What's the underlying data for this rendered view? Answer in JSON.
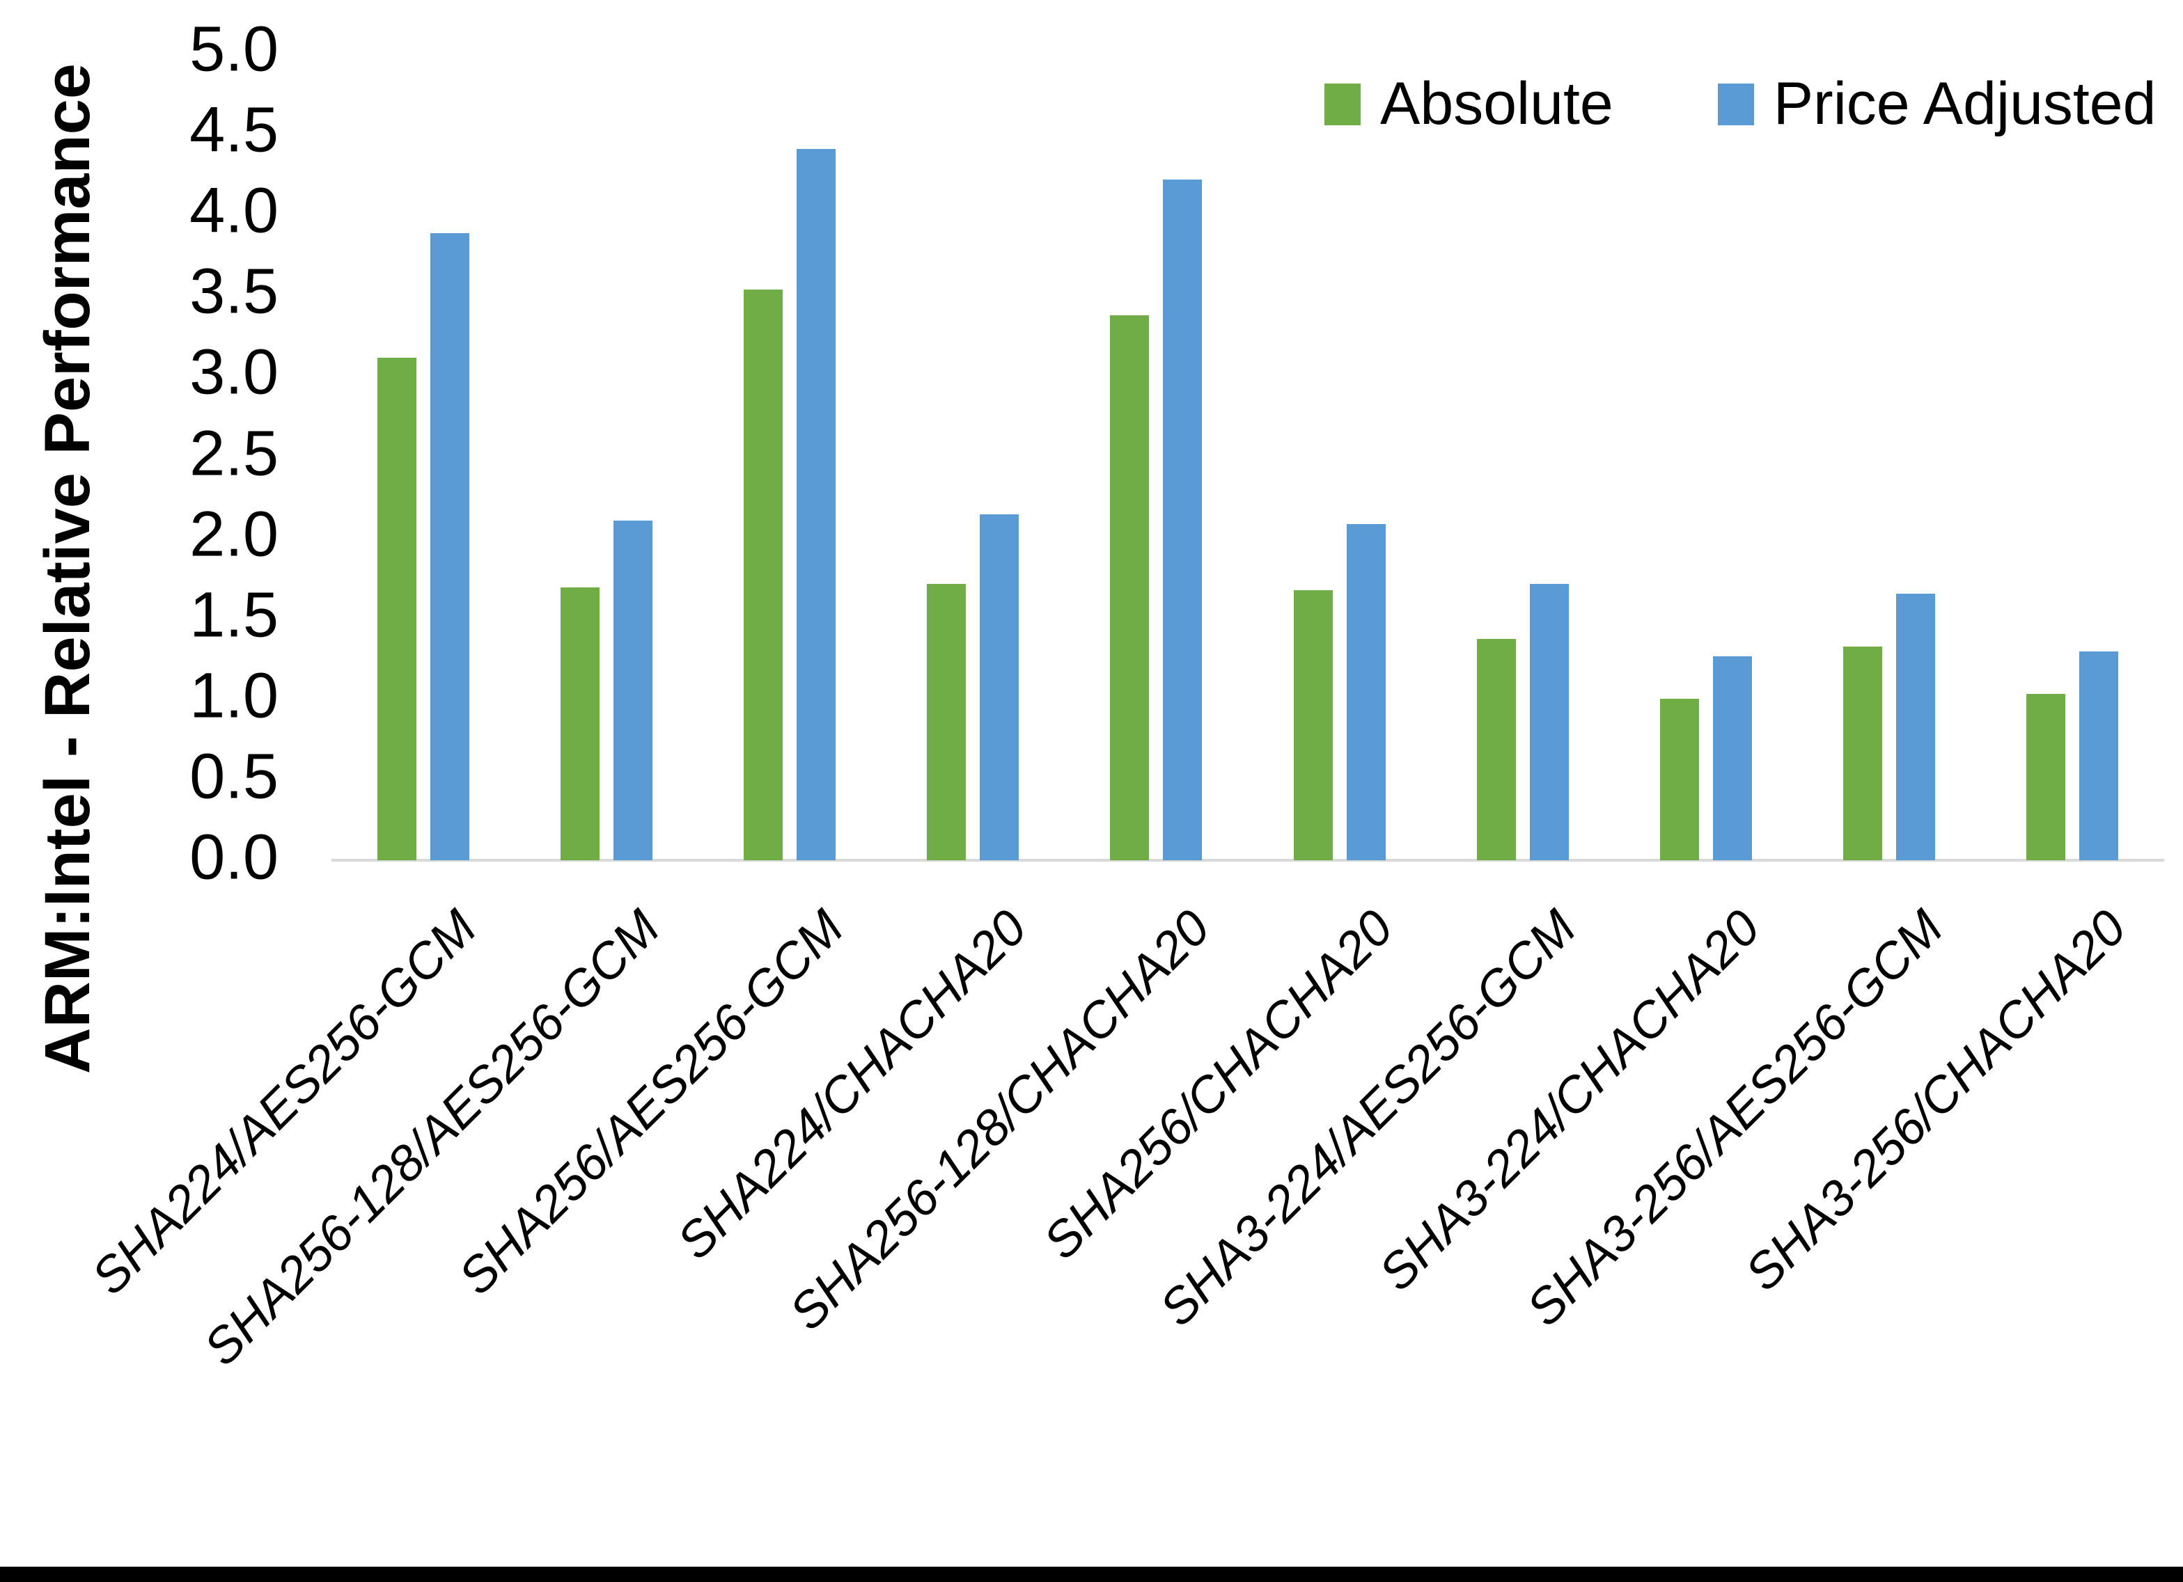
{
  "chart_data": {
    "type": "bar",
    "title": "",
    "xlabel": "",
    "ylabel": "ARM:Intel - Relative Performance",
    "ylim": [
      0.0,
      5.0
    ],
    "ytick_step": 0.5,
    "ytick_labels_top_to_bottom": [
      "5.0",
      "4.5",
      "4.0",
      "3.5",
      "3.0",
      "2.5",
      "2.0",
      "1.5",
      "1.0",
      "0.5",
      "0.0"
    ],
    "grid": false,
    "legend_position": "top-right",
    "categories": [
      "SHA224/AES256-GCM",
      "SHA256-128/AES256-GCM",
      "SHA256/AES256-GCM",
      "SHA224/CHACHA20",
      "SHA256-128/CHACHA20",
      "SHA256/CHACHA20",
      "SHA3-224/AES256-GCM",
      "SHA3-224/CHACHA20",
      "SHA3-256/AES256-GCM",
      "SHA3-256/CHACHA20"
    ],
    "series": [
      {
        "name": "Absolute",
        "color": "#70AD47",
        "values": [
          3.11,
          1.69,
          3.53,
          1.71,
          3.37,
          1.67,
          1.37,
          1.0,
          1.32,
          1.03
        ]
      },
      {
        "name": "Price Adjusted",
        "color": "#5B9BD5",
        "values": [
          3.88,
          2.1,
          4.4,
          2.14,
          4.21,
          2.08,
          1.71,
          1.26,
          1.65,
          1.29
        ]
      }
    ],
    "baseline_color": "#D9D9D9",
    "bottom_edge_color": "#000000"
  }
}
